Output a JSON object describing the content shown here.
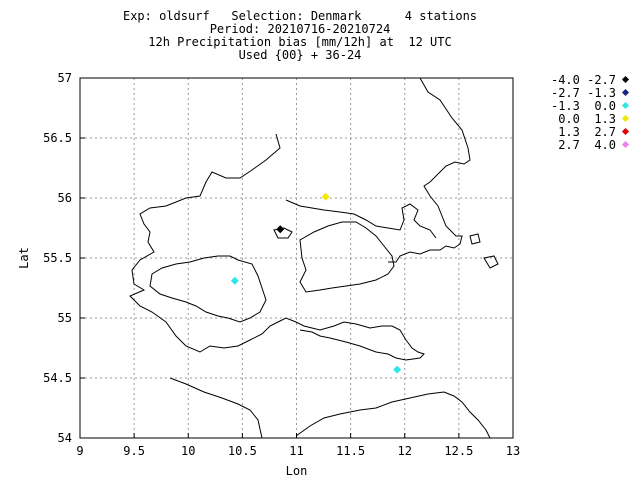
{
  "title": {
    "exp": "Exp: oldsurf",
    "selection": "Selection: Denmark",
    "stations": "4 stations",
    "period": "Period: 20210716-20210724",
    "quantity": "12h Precipitation bias [mm/12h] at  12 UTC",
    "used": "Used {00} + 36-24"
  },
  "chart_data": {
    "type": "scatter",
    "xlabel": "Lon",
    "ylabel": "Lat",
    "xlim": [
      9,
      13
    ],
    "ylim": [
      54,
      57
    ],
    "xticks": [
      "9",
      "9.5",
      "10",
      "10.5",
      "11",
      "11.5",
      "12",
      "12.5",
      "13"
    ],
    "xtick_values": [
      9,
      9.5,
      10,
      10.5,
      11,
      11.5,
      12,
      12.5,
      13
    ],
    "yticks": [
      "54",
      "54.5",
      "55",
      "55.5",
      "56",
      "56.5",
      "57"
    ],
    "ytick_values": [
      54,
      54.5,
      55,
      55.5,
      56,
      56.5,
      57
    ],
    "grid": true,
    "legend_placement": "right",
    "legend": [
      {
        "label": "-4.0 -2.7",
        "color": "#000000"
      },
      {
        "label": "-2.7 -1.3",
        "color": "#1a237e"
      },
      {
        "label": "-1.3  0.0",
        "color": "#2ee6e6"
      },
      {
        "label": " 0.0  1.3",
        "color": "#f0e800"
      },
      {
        "label": " 1.3  2.7",
        "color": "#e00000"
      },
      {
        "label": " 2.7  4.0",
        "color": "#f080f0"
      }
    ],
    "points": [
      {
        "lon": 10.85,
        "lat": 55.74,
        "bin": 0
      },
      {
        "lon": 11.27,
        "lat": 56.01,
        "bin": 3
      },
      {
        "lon": 10.43,
        "lat": 55.31,
        "bin": 2
      },
      {
        "lon": 11.93,
        "lat": 54.57,
        "bin": 2
      }
    ]
  }
}
